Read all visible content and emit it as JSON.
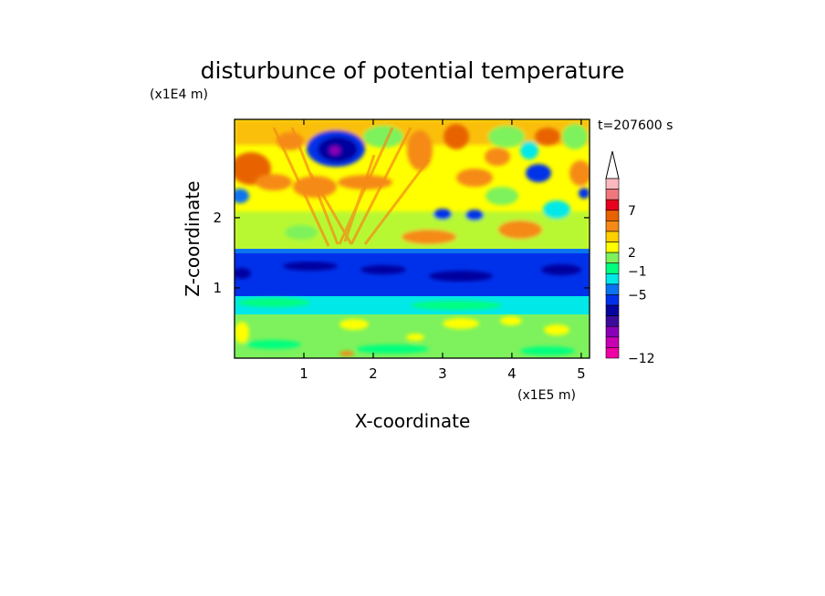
{
  "chart_data": {
    "type": "heatmap",
    "title": "disturbunce of potential temperature",
    "xlabel": "X-coordinate",
    "ylabel": "Z-coordinate",
    "x_unit_label": "(x1E5 m)",
    "y_unit_label": "(x1E4 m)",
    "time_label": "t=207600 s",
    "xlim": [
      0,
      5.12
    ],
    "ylim": [
      0,
      3.4
    ],
    "x_ticks": [
      "1",
      "2",
      "3",
      "4",
      "5"
    ],
    "x_tick_values": [
      1,
      2,
      3,
      4,
      5
    ],
    "y_ticks": [
      "1",
      "2"
    ],
    "y_tick_values": [
      1,
      2
    ],
    "colorbar": {
      "labels": [
        "7",
        "2",
        "−1",
        "−5",
        "−12"
      ],
      "label_levels": [
        7,
        2,
        -1,
        -5,
        -12
      ],
      "colors": [
        "#fbb9bf",
        "#f0787c",
        "#e8001e",
        "#e86300",
        "#f58a16",
        "#ffcf00",
        "#ffff00",
        "#7df25c",
        "#00ff7f",
        "#00e8e8",
        "#0a74f0",
        "#0031ea",
        "#06059f",
        "#3c0b9c",
        "#8a00b8",
        "#c800b4",
        "#f000a6"
      ],
      "extend": "max"
    },
    "layers": [
      {
        "z_range": [
          0,
          0.35
        ],
        "description_level": "green-yellow mix near 0 to 1"
      },
      {
        "z_range": [
          0.35,
          0.8
        ],
        "description_level": "cyan/green"
      },
      {
        "z_range": [
          0.8,
          1.55
        ],
        "description_level": "blue (about -3 to -5)"
      },
      {
        "z_range": [
          1.55,
          3.4
        ],
        "description_level": "yellow/orange wave pattern (about 1 to 6)"
      }
    ],
    "grid": false,
    "legend": "colorbar-right"
  }
}
